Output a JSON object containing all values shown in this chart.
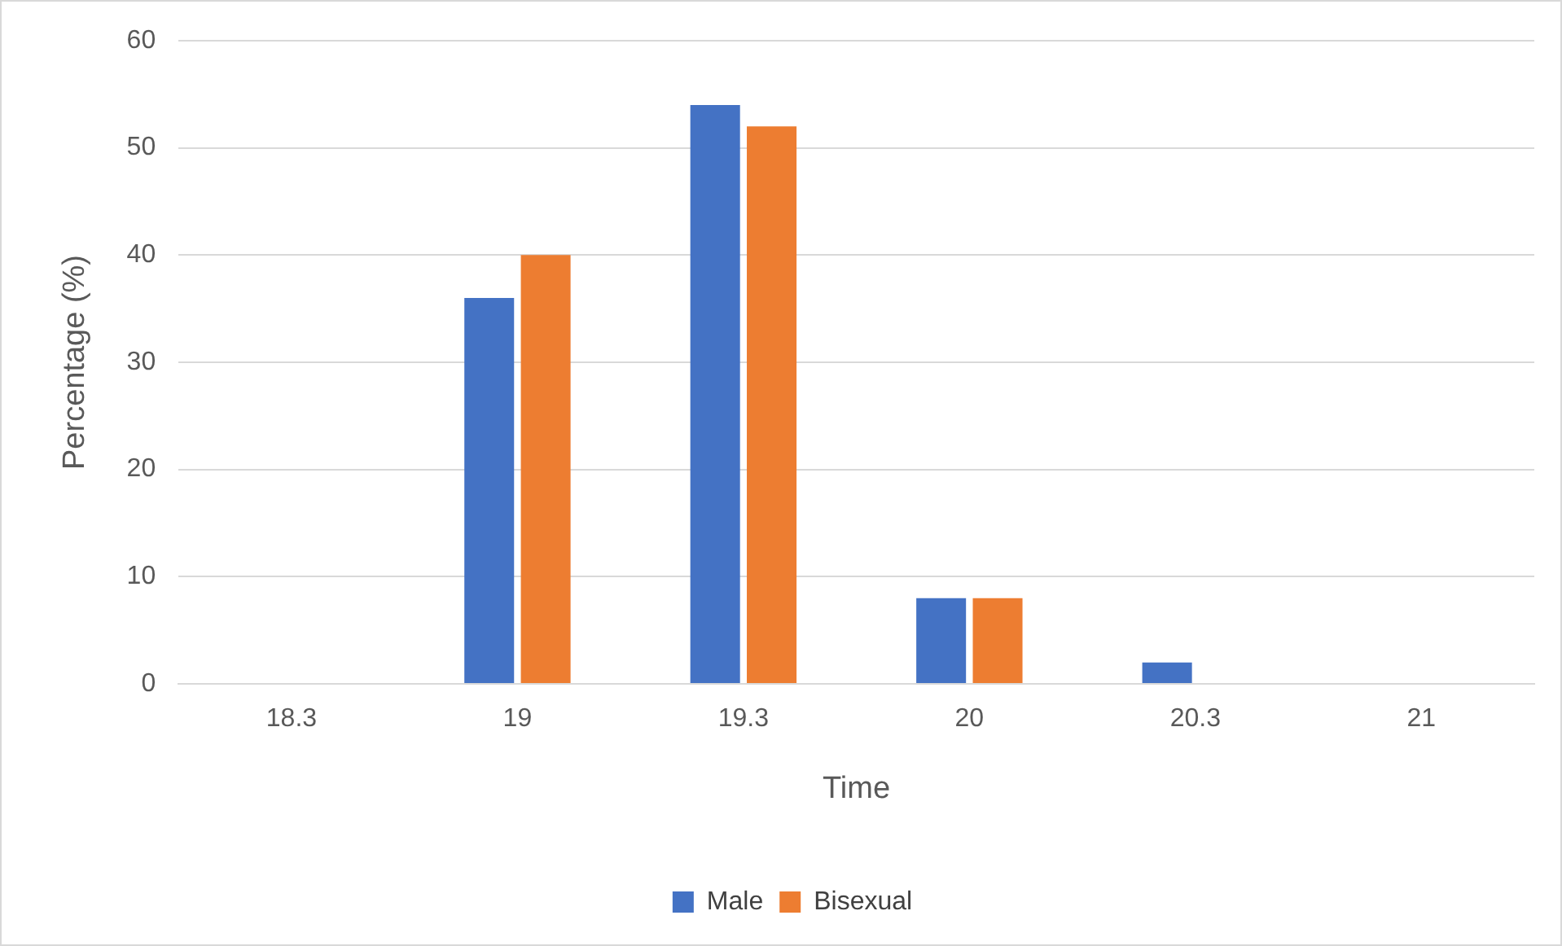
{
  "chart_data": {
    "type": "bar",
    "xlabel": "Time",
    "ylabel": "Percentage (%)",
    "categories": [
      "18.3",
      "19",
      "19.3",
      "20",
      "20.3",
      "21"
    ],
    "series": [
      {
        "name": "Male",
        "color": "#4472c4",
        "values": [
          0,
          36,
          54,
          8,
          2,
          0
        ]
      },
      {
        "name": "Bisexual",
        "color": "#ed7d31",
        "values": [
          0,
          40,
          52,
          8,
          0,
          0
        ]
      }
    ],
    "ylim": [
      0,
      60
    ],
    "yticks": [
      0,
      10,
      20,
      30,
      40,
      50,
      60
    ],
    "grid": "y",
    "legend": "bottom"
  }
}
